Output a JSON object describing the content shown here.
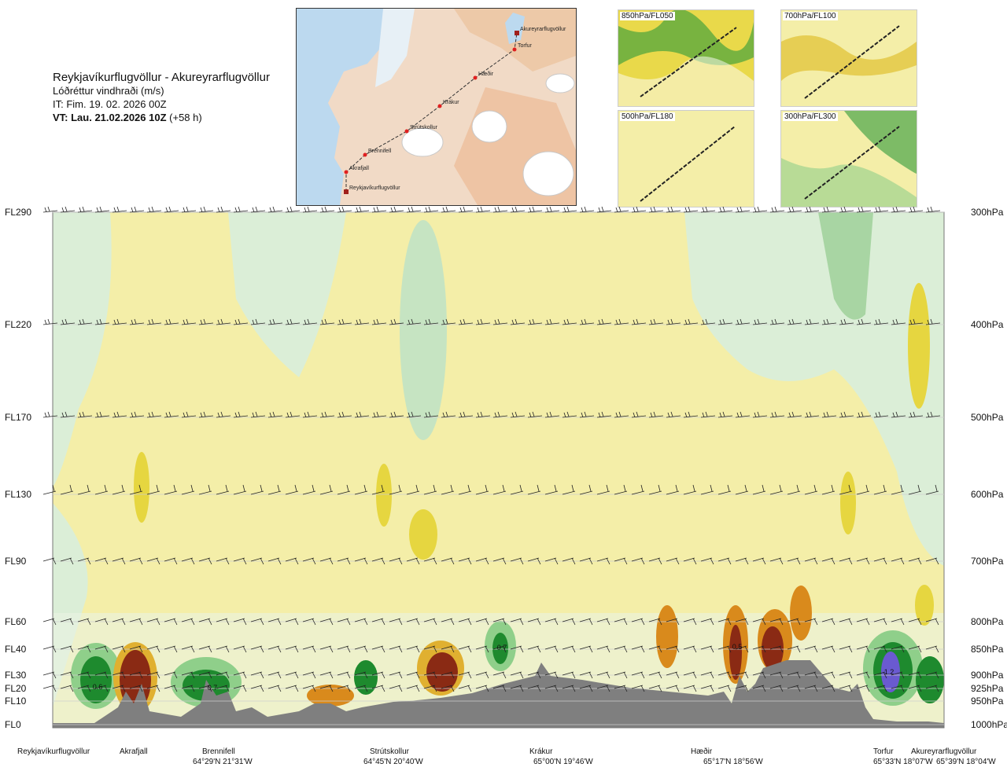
{
  "header": {
    "route": "Reykjavíkurflugvöllur - Akureyrarflugvöllur",
    "variable": "Lóðréttur vindhraði (m/s)",
    "issue_time": "IT: Fim. 19. 02. 2026 00Z",
    "valid_time_bold": "VT: Lau. 21.02.2026 10Z",
    "valid_time_offset": "(+58 h)"
  },
  "map": {
    "waypoints": [
      "Reykjavíkurflugvöllur",
      "Akrafjall",
      "Brennifell",
      "Strútskollur",
      "Krákur",
      "Hæðir",
      "Torfur",
      "Akureyrarflugvöllur"
    ]
  },
  "minimaps": [
    {
      "label": "850hPa/FL050"
    },
    {
      "label": "700hPa/FL100"
    },
    {
      "label": "500hPa/FL180"
    },
    {
      "label": "300hPa/FL300"
    }
  ],
  "colors": {
    "background_field": "#f4eea8",
    "light_green": "#d8ecd4",
    "green": "#8fcf8a",
    "dark_green": "#1e8a2e",
    "yellow": "#e8d94a",
    "orange": "#d98a1c",
    "brown": "#8a2a14",
    "terrain": "#7f7f7f",
    "waypoint_red": "#e02020"
  },
  "chart_data": {
    "type": "heatmap",
    "title": "Lóðréttur vindhraði (m/s)",
    "y_levels_left": [
      "FL290",
      "FL220",
      "FL170",
      "FL130",
      "FL90",
      "FL60",
      "FL40",
      "FL30",
      "FL20",
      "FL10",
      "FL0"
    ],
    "y_levels_right": [
      "300hPa",
      "400hPa",
      "500hPa",
      "600hPa",
      "700hPa",
      "800hPa",
      "850hPa",
      "900hPa",
      "925hPa",
      "950hPa",
      "1000hPa"
    ],
    "x_points": [
      {
        "name": "Reykjavíkurflugvöllur",
        "coord": ""
      },
      {
        "name": "Akrafjall",
        "coord": ""
      },
      {
        "name": "Brennifell",
        "coord": "64°29'N 21°31'W"
      },
      {
        "name": "Strútskollur",
        "coord": "64°45'N 20°40'W"
      },
      {
        "name": "Krákur",
        "coord": "65°00'N 19°46'W"
      },
      {
        "name": "Hæðir",
        "coord": "65°17'N 18°56'W"
      },
      {
        "name": "Torfur",
        "coord": "65°33'N 18°07'W"
      },
      {
        "name": "Akureyrarflugvöllur",
        "coord": "65°39'N 18°04'W"
      }
    ],
    "annotations": [
      "0.6",
      "0.7",
      "0.7",
      "0.5",
      "1.2"
    ]
  }
}
